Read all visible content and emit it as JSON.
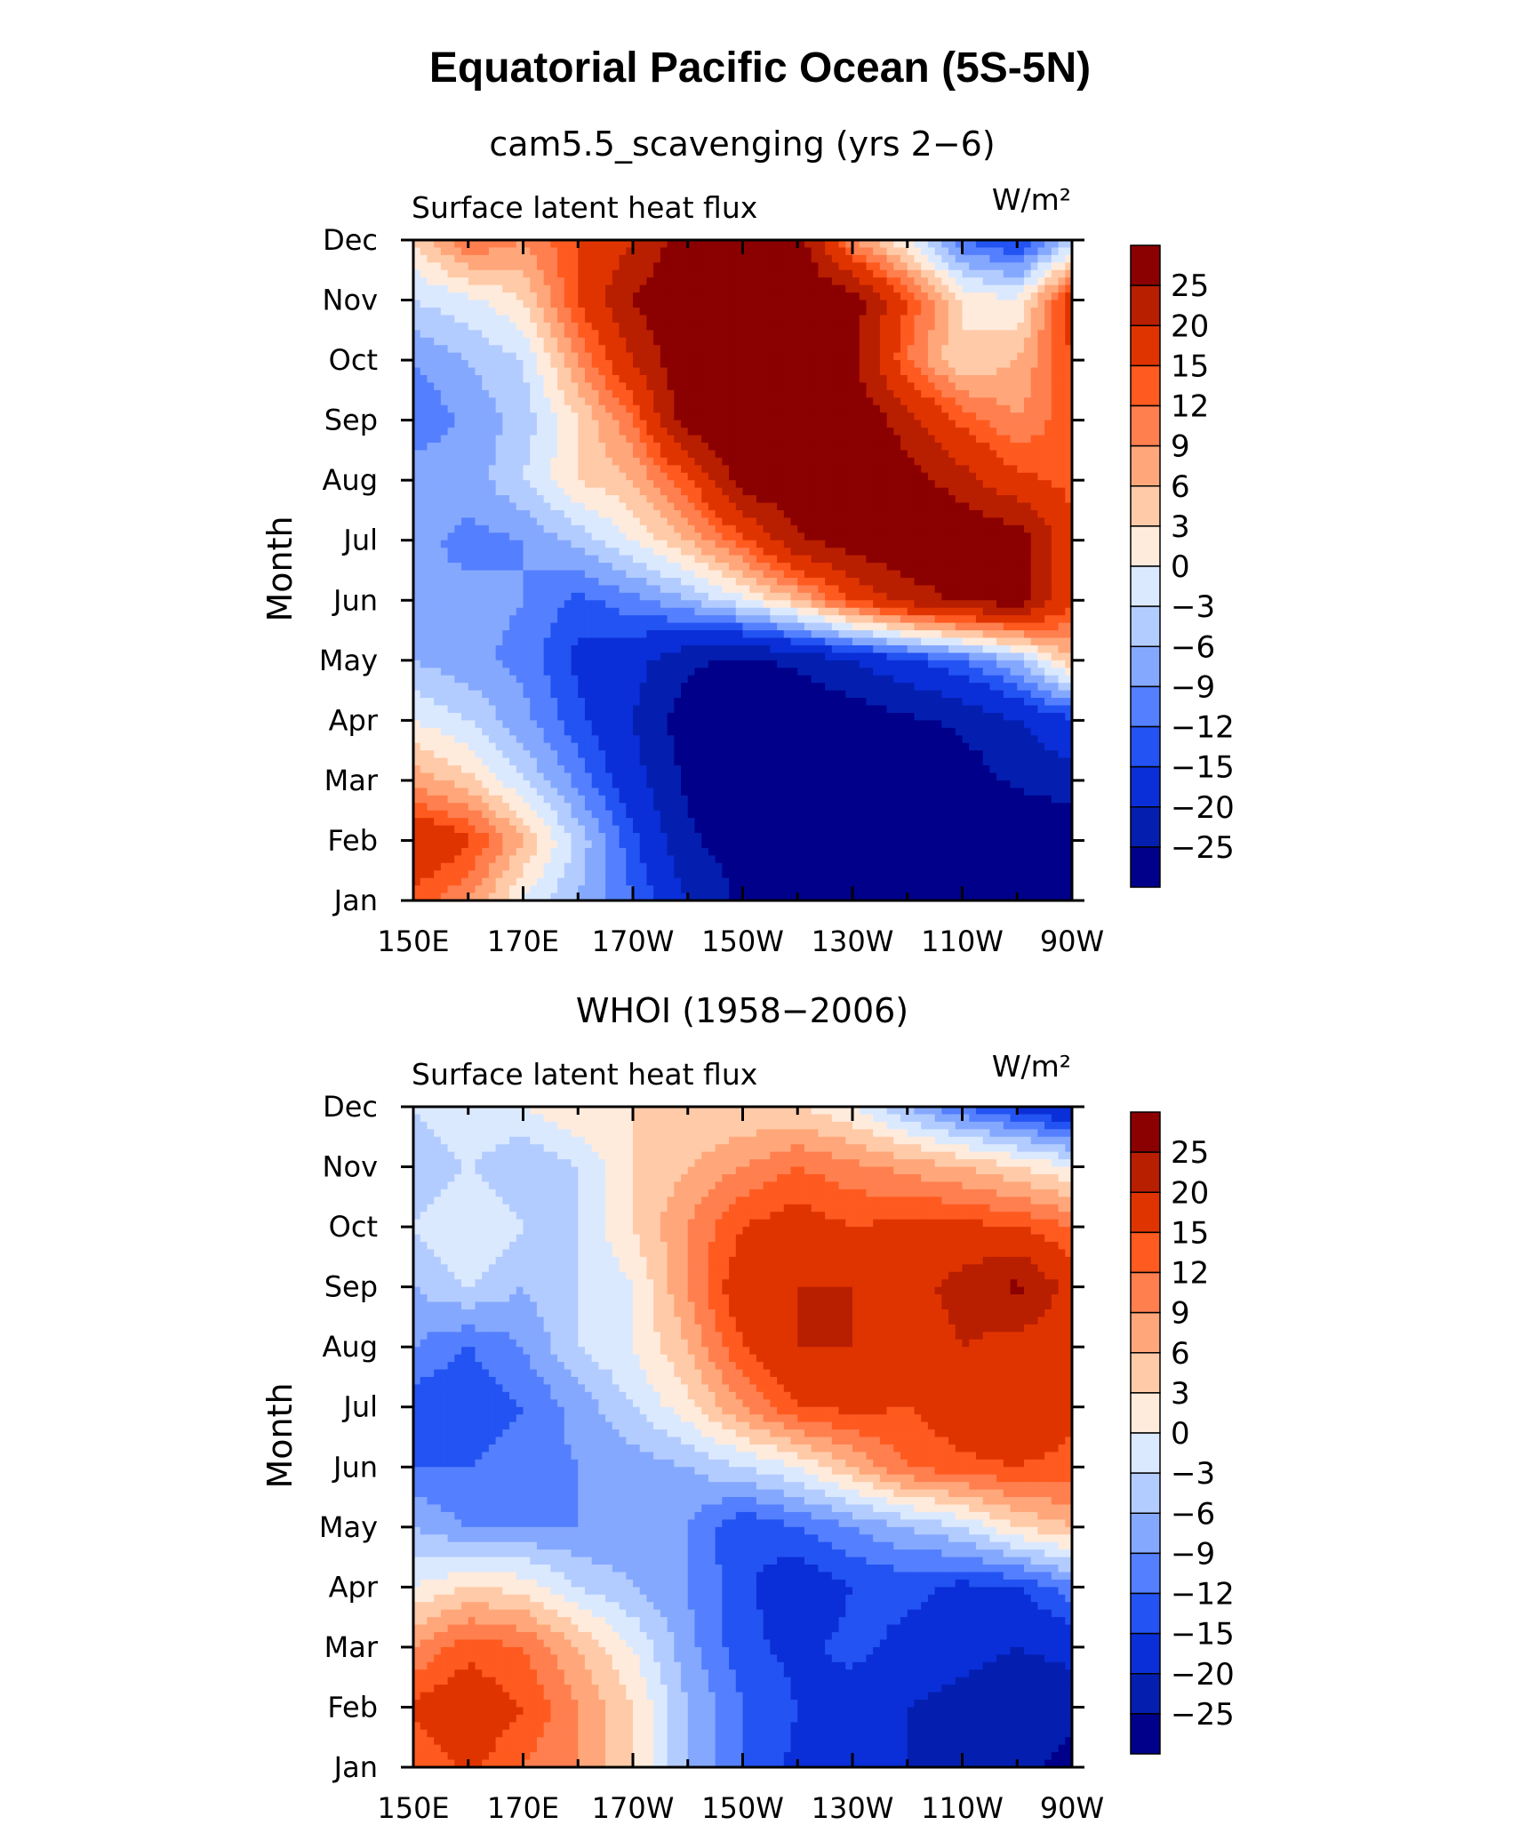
{
  "title": "Equatorial Pacific Ocean (5S-5N)",
  "chart_data": [
    {
      "type": "heatmap",
      "subtitle": "cam5.5_scavenging (yrs 2−6)",
      "variable_label": "Surface latent heat flux",
      "units_label": "W/m²",
      "ylabel": "Month",
      "xlabel": "",
      "x_ticks": [
        "150E",
        "170E",
        "170W",
        "150W",
        "130W",
        "110W",
        "90W"
      ],
      "x_range": [
        150,
        270
      ],
      "y_ticks": [
        "Jan",
        "Feb",
        "Mar",
        "Apr",
        "May",
        "Jun",
        "Jul",
        "Aug",
        "Sep",
        "Oct",
        "Nov",
        "Dec"
      ],
      "levels": [
        "25",
        "20",
        "15",
        "12",
        "9",
        "6",
        "3",
        "0",
        "−3",
        "−6",
        "−9",
        "−12",
        "−15",
        "−20",
        "−25"
      ],
      "x": [
        150,
        160,
        170,
        180,
        190,
        200,
        210,
        220,
        230,
        240,
        250,
        260,
        270
      ],
      "values": [
        [
          14,
          9,
          0,
          -6,
          -12,
          -20,
          -26,
          -27,
          -28,
          -30,
          -30,
          -32,
          -30
        ],
        [
          20,
          16,
          6,
          -4,
          -14,
          -24,
          -28,
          -30,
          -30,
          -30,
          -30,
          -30,
          -30
        ],
        [
          8,
          4,
          -3,
          -10,
          -18,
          -26,
          -28,
          -30,
          -30,
          -28,
          -28,
          -24,
          -22
        ],
        [
          0,
          -3,
          -8,
          -14,
          -20,
          -28,
          -30,
          -30,
          -28,
          -26,
          -24,
          -20,
          -16
        ],
        [
          -6,
          -8,
          -10,
          -16,
          -18,
          -24,
          -26,
          -24,
          -20,
          -16,
          -12,
          -6,
          6
        ],
        [
          -9,
          -8,
          -9,
          -13,
          -10,
          -6,
          -1,
          6,
          15,
          22,
          26,
          28,
          16
        ],
        [
          -8,
          -10,
          -9,
          -5,
          0,
          6,
          14,
          24,
          28,
          30,
          30,
          28,
          16
        ],
        [
          -6,
          -8,
          -3,
          3,
          6,
          14,
          28,
          30,
          30,
          28,
          22,
          16,
          14
        ],
        [
          -12,
          -8,
          -5,
          3,
          12,
          28,
          30,
          30,
          30,
          22,
          14,
          9,
          14
        ],
        [
          -9,
          -6,
          -3,
          9,
          20,
          30,
          30,
          30,
          26,
          12,
          3,
          6,
          15
        ],
        [
          -3,
          -1,
          3,
          15,
          25,
          30,
          30,
          30,
          28,
          15,
          3,
          0,
          18
        ],
        [
          3,
          12,
          9,
          15,
          20,
          28,
          28,
          28,
          9,
          0,
          -12,
          -16,
          -5
        ]
      ]
    },
    {
      "type": "heatmap",
      "subtitle": "WHOI (1958−2006)",
      "variable_label": "Surface latent heat flux",
      "units_label": "W/m²",
      "ylabel": "Month",
      "xlabel": "",
      "x_ticks": [
        "150E",
        "170E",
        "170W",
        "150W",
        "130W",
        "110W",
        "90W"
      ],
      "x_range": [
        150,
        270
      ],
      "y_ticks": [
        "Jan",
        "Feb",
        "Mar",
        "Apr",
        "May",
        "Jun",
        "Jul",
        "Aug",
        "Sep",
        "Oct",
        "Nov",
        "Dec"
      ],
      "levels": [
        "25",
        "20",
        "15",
        "12",
        "9",
        "6",
        "3",
        "0",
        "−3",
        "−6",
        "−9",
        "−12",
        "−15",
        "−20",
        "−25"
      ],
      "x": [
        150,
        160,
        170,
        180,
        190,
        200,
        210,
        220,
        230,
        240,
        250,
        260,
        270
      ],
      "values": [
        [
          12,
          16,
          12,
          9,
          3,
          -6,
          -12,
          -16,
          -18,
          -20,
          -22,
          -24,
          -26
        ],
        [
          16,
          18,
          15,
          9,
          3,
          -6,
          -12,
          -15,
          -17,
          -20,
          -22,
          -24,
          -24
        ],
        [
          9,
          14,
          12,
          6,
          0,
          -8,
          -14,
          -16,
          -14,
          -16,
          -18,
          -20,
          -18
        ],
        [
          0,
          3,
          2,
          -3,
          -6,
          -9,
          -14,
          -18,
          -15,
          -14,
          -16,
          -15,
          -10
        ],
        [
          -6,
          -9,
          -9,
          -9,
          -8,
          -9,
          -15,
          -12,
          -9,
          -6,
          -3,
          3,
          6
        ],
        [
          -12,
          -12,
          -10,
          -9,
          -8,
          -6,
          -3,
          0,
          6,
          12,
          14,
          15,
          14
        ],
        [
          -14,
          -15,
          -12,
          -8,
          -3,
          2,
          9,
          15,
          16,
          15,
          18,
          18,
          16
        ],
        [
          -9,
          -12,
          -9,
          -3,
          0,
          6,
          15,
          20,
          20,
          16,
          20,
          18,
          16
        ],
        [
          -6,
          -3,
          -6,
          -3,
          0,
          9,
          18,
          20,
          20,
          18,
          22,
          26,
          18
        ],
        [
          -3,
          0,
          -3,
          -3,
          3,
          9,
          15,
          17,
          15,
          16,
          16,
          15,
          12
        ],
        [
          -6,
          -3,
          -6,
          -3,
          3,
          6,
          9,
          12,
          10,
          8,
          6,
          3,
          0
        ],
        [
          -3,
          0,
          0,
          3,
          3,
          3,
          3,
          3,
          0,
          -6,
          -12,
          -16,
          -20
        ]
      ]
    }
  ],
  "colors": {
    "levels_palette": [
      "#8b0000",
      "#b81e00",
      "#e03400",
      "#ff5a1f",
      "#ff7f4f",
      "#ffa77a",
      "#ffcaa8",
      "#ffebdc",
      "#dbe9ff",
      "#b3ccff",
      "#85a8ff",
      "#5480ff",
      "#2353f2",
      "#0a2fd8",
      "#041fb0",
      "#00008b"
    ]
  }
}
